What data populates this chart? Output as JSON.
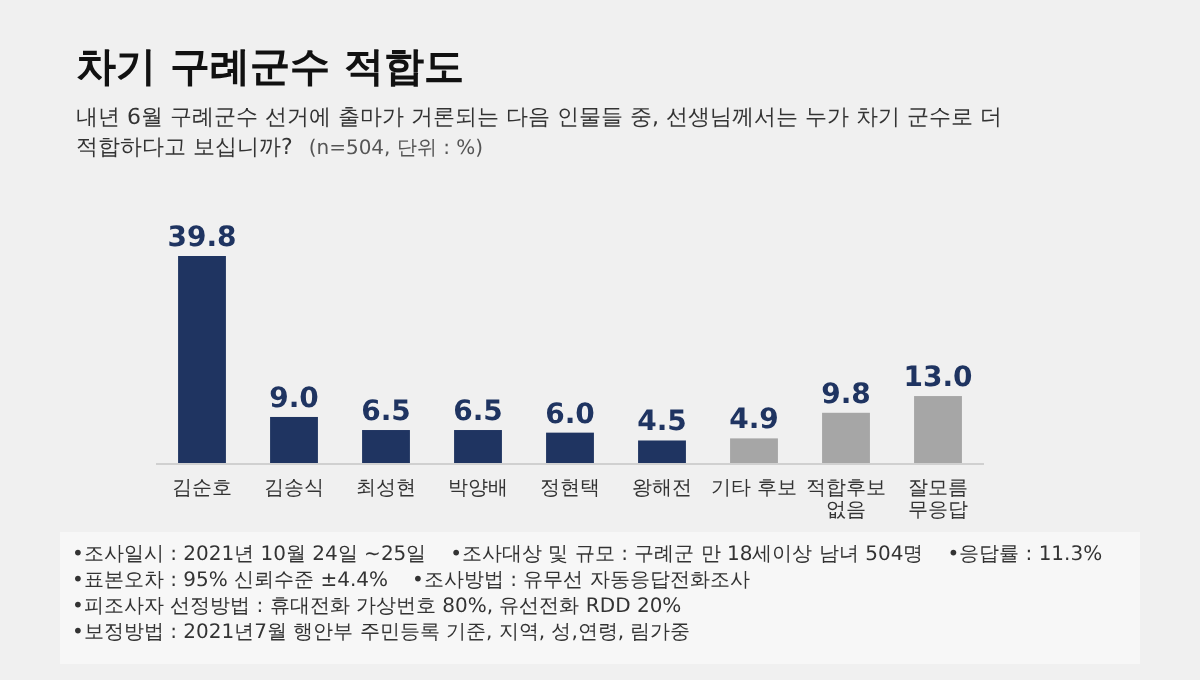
{
  "chart_data": {
    "type": "bar",
    "title": "차기 구례군수 적합도",
    "subtitle": "내년 6월 구례군수 선거에 출마가 거론되는 다음 인물들 중, 선생님께서는 누가 차기 군수로 더 적합하다고 보십니까?",
    "categories": [
      "김순호",
      "김송식",
      "최성현",
      "박양배",
      "정현택",
      "왕해전",
      "기타 후보",
      "적합후보\n없음",
      "잘모름\n무응답"
    ],
    "values": [
      39.8,
      9.0,
      6.5,
      6.5,
      6.0,
      4.5,
      4.9,
      9.8,
      13.0
    ],
    "value_labels": [
      "39.8",
      "9.0",
      "6.5",
      "6.5",
      "6.0",
      "4.5",
      "4.9",
      "9.8",
      "13.0"
    ],
    "colors": [
      "#1f3461",
      "#1f3461",
      "#1f3461",
      "#1f3461",
      "#1f3461",
      "#1f3461",
      "#a6a6a6",
      "#a6a6a6",
      "#a6a6a6"
    ],
    "annotations": [
      "(n=504, 단위 : %)",
      "•조사일시 : 2021년 10월 24일 ~25일",
      "•조사대상 및 규모 : 구례군 만 18세이상 남녀 504명",
      "•응답률 : 11.3%",
      "•표본오차 : 95% 신뢰수준 ±4.4%",
      "•조사방법 : 유무선 자동응답전화조사",
      "•피조사자 선정방법 : 휴대전화 가상번호 80%, 유선전화 RDD 20%",
      "•보정방법 : 2021년7월 행안부 주민등록 기준, 지역, 성,연령, 림가중"
    ]
  }
}
